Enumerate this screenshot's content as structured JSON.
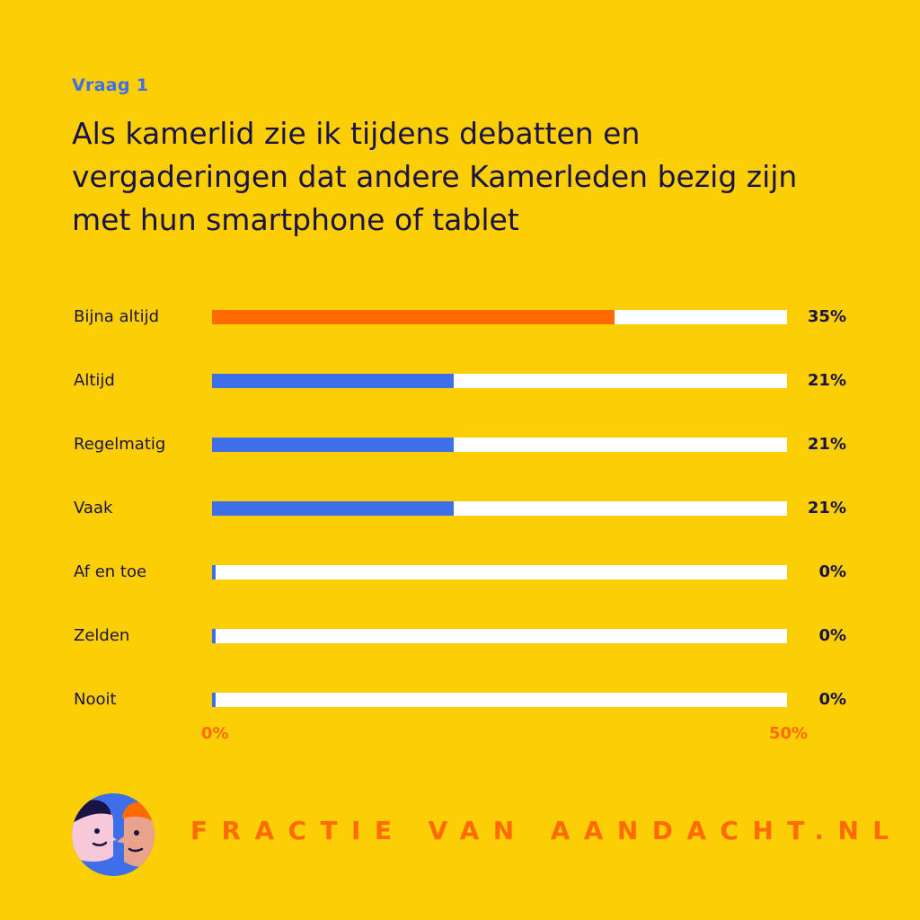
{
  "header": {
    "question_label": "Vraag 1",
    "question_text": "Als kamerlid zie ik tijdens debatten en vergaderingen dat andere Kamerleden bezig zijn met hun smartphone of tablet"
  },
  "colors": {
    "background": "#FCCE06",
    "highlight_bar": "#FF6B00",
    "bar": "#3E6EE8",
    "track": "#FFFFFF",
    "text": "#1A1446",
    "axis": "#FF6B00",
    "label_accent": "#3E6EE8"
  },
  "chart_data": {
    "type": "bar",
    "orientation": "horizontal",
    "categories": [
      "Bijna altijd",
      "Altijd",
      "Regelmatig",
      "Vaak",
      "Af en toe",
      "Zelden",
      "Nooit"
    ],
    "values": [
      35,
      21,
      21,
      21,
      0,
      0,
      0
    ],
    "value_labels": [
      "35%",
      "21%",
      "21%",
      "21%",
      "0%",
      "0%",
      "0%"
    ],
    "unit": "%",
    "xlim": [
      0,
      50
    ],
    "x_tick_labels": [
      "0%",
      "50%"
    ],
    "highlight_index": 0,
    "grid": false
  },
  "footer": {
    "brand": "FRACTIE VAN AANDACHT.NL",
    "logo_icon": "two-faces-logo-icon"
  }
}
